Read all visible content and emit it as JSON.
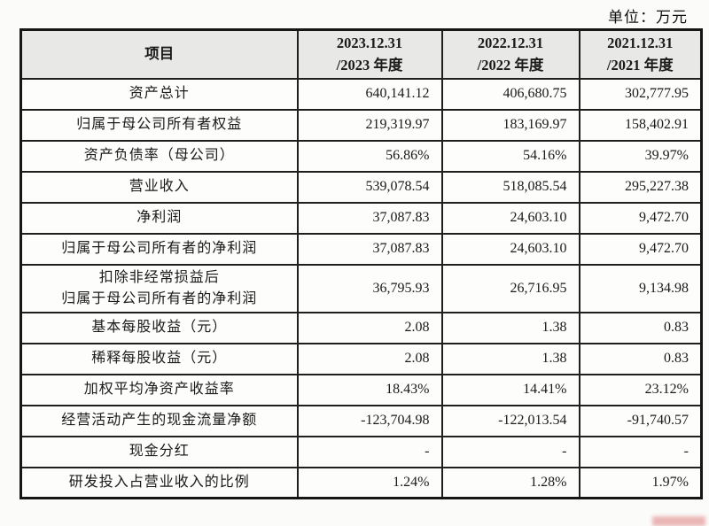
{
  "unit_label": "单位：万元",
  "table": {
    "columns": [
      "项目",
      "2023.12.31\n/2023 年度",
      "2022.12.31\n/2022 年度",
      "2021.12.31\n/2021 年度"
    ],
    "rows": [
      {
        "label": "资产总计",
        "values": [
          "640,141.12",
          "406,680.75",
          "302,777.95"
        ]
      },
      {
        "label": "归属于母公司所有者权益",
        "values": [
          "219,319.97",
          "183,169.97",
          "158,402.91"
        ]
      },
      {
        "label": "资产负债率（母公司）",
        "values": [
          "56.86%",
          "54.16%",
          "39.97%"
        ]
      },
      {
        "label": "营业收入",
        "values": [
          "539,078.54",
          "518,085.54",
          "295,227.38"
        ]
      },
      {
        "label": "净利润",
        "values": [
          "37,087.83",
          "24,603.10",
          "9,472.70"
        ]
      },
      {
        "label": "归属于母公司所有者的净利润",
        "values": [
          "37,087.83",
          "24,603.10",
          "9,472.70"
        ]
      },
      {
        "label": "扣除非经常损益后\n归属于母公司所有者的净利润",
        "values": [
          "36,795.93",
          "26,716.95",
          "9,134.98"
        ]
      },
      {
        "label": "基本每股收益（元）",
        "values": [
          "2.08",
          "1.38",
          "0.83"
        ]
      },
      {
        "label": "稀释每股收益（元）",
        "values": [
          "2.08",
          "1.38",
          "0.83"
        ]
      },
      {
        "label": "加权平均净资产收益率",
        "values": [
          "18.43%",
          "14.41%",
          "23.12%"
        ]
      },
      {
        "label": "经营活动产生的现金流量净额",
        "values": [
          "-123,704.98",
          "-122,013.54",
          "-91,740.57"
        ]
      },
      {
        "label": "现金分红",
        "values": [
          "-",
          "-",
          "-"
        ]
      },
      {
        "label": "研发投入占营业收入的比例",
        "values": [
          "1.24%",
          "1.28%",
          "1.97%"
        ]
      }
    ]
  },
  "colors": {
    "header_background": "#e8e8e6",
    "cell_background": "#fdfdfb",
    "border": "#1f1f1f",
    "text": "#1a1a1a",
    "watermark_red": "#d25050"
  }
}
